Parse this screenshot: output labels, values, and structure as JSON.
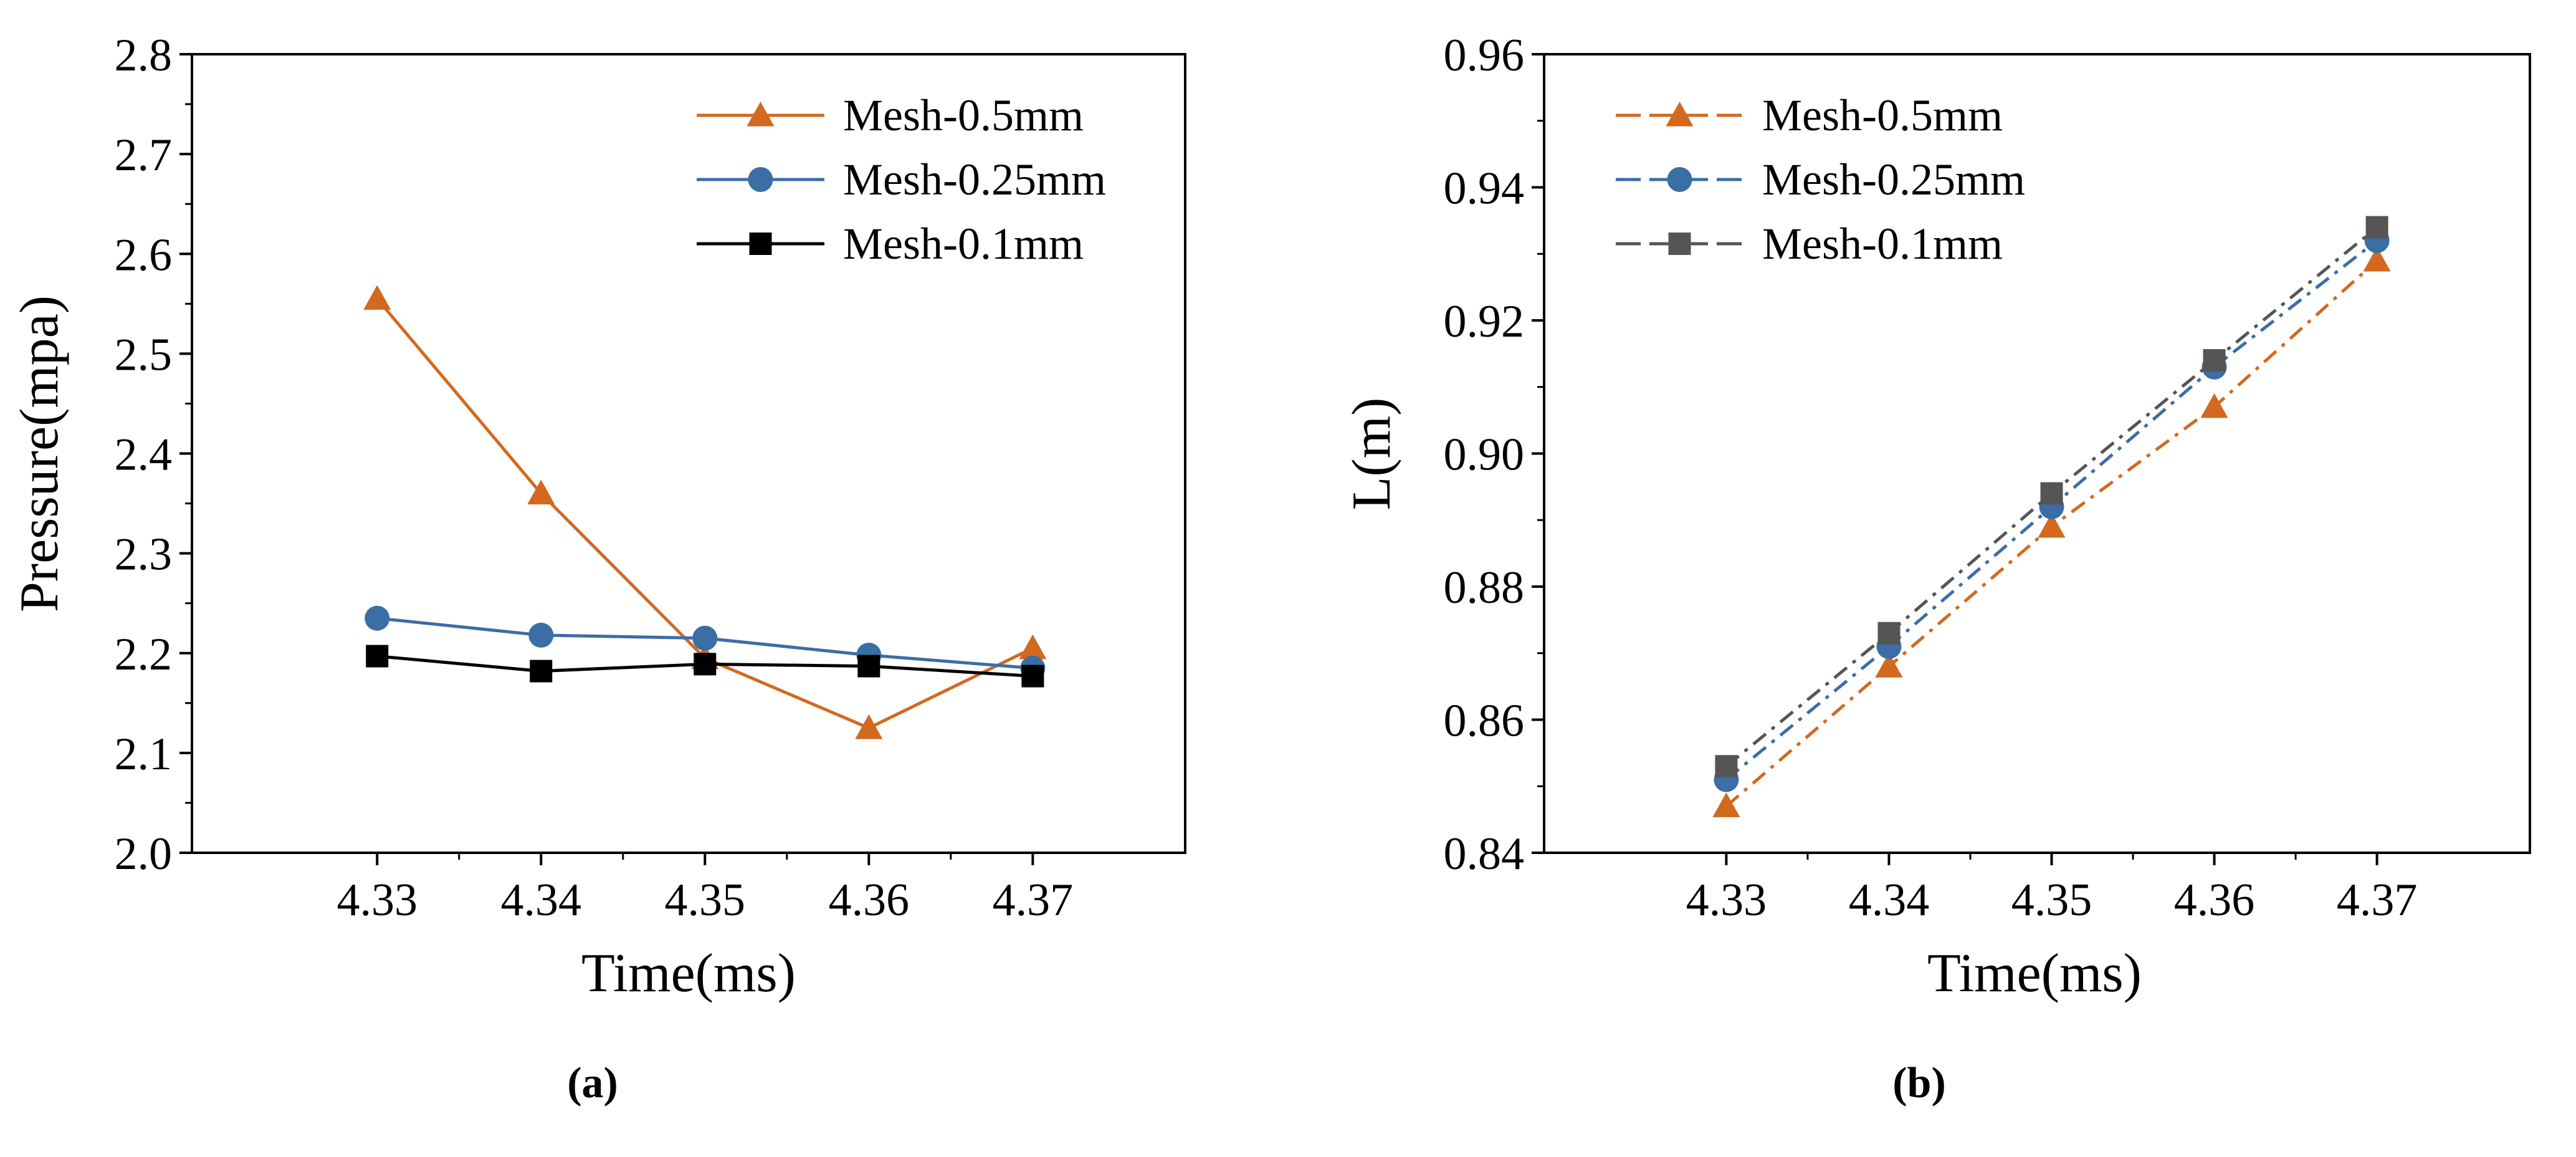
{
  "chart_data": [
    {
      "type": "line",
      "panel_label": "(a)",
      "xlabel": "Time(ms)",
      "ylabel": "Pressure(mpa)",
      "x": [
        4.33,
        4.34,
        4.35,
        4.36,
        4.37
      ],
      "xlim": [
        4.3187,
        4.3793
      ],
      "ylim": [
        2.0,
        2.8
      ],
      "xticks": [
        "4.33",
        "4.34",
        "4.35",
        "4.36",
        "4.37"
      ],
      "yticks": [
        "2.0",
        "2.1",
        "2.2",
        "2.3",
        "2.4",
        "2.5",
        "2.6",
        "2.7",
        "2.8"
      ],
      "grid": false,
      "legend_position": "top-right",
      "series": [
        {
          "name": "Mesh-0.5mm",
          "values": [
            2.555,
            2.36,
            2.195,
            2.125,
            2.205
          ],
          "color": "#D2691E",
          "marker": "triangle",
          "line_style": "solid"
        },
        {
          "name": "Mesh-0.25mm",
          "values": [
            2.235,
            2.218,
            2.215,
            2.198,
            2.185
          ],
          "color": "#3A6EA5",
          "marker": "circle",
          "line_style": "solid"
        },
        {
          "name": "Mesh-0.1mm",
          "values": [
            2.197,
            2.182,
            2.189,
            2.187,
            2.177
          ],
          "color": "#000000",
          "marker": "square",
          "line_style": "solid"
        }
      ]
    },
    {
      "type": "line",
      "panel_label": "(b)",
      "xlabel": "Time(ms)",
      "ylabel": "L(m)",
      "x": [
        4.33,
        4.34,
        4.35,
        4.36,
        4.37
      ],
      "xlim": [
        4.3188,
        4.3794
      ],
      "ylim": [
        0.84,
        0.96
      ],
      "xticks": [
        "4.33",
        "4.34",
        "4.35",
        "4.36",
        "4.37"
      ],
      "yticks": [
        "0.84",
        "0.86",
        "0.88",
        "0.90",
        "0.92",
        "0.94",
        "0.96"
      ],
      "grid": false,
      "legend_position": "top-left",
      "series": [
        {
          "name": "Mesh-0.5mm",
          "values": [
            0.847,
            0.868,
            0.889,
            0.907,
            0.929
          ],
          "color": "#D2691E",
          "marker": "triangle",
          "line_style": "dash-dot"
        },
        {
          "name": "Mesh-0.25mm",
          "values": [
            0.851,
            0.871,
            0.892,
            0.913,
            0.932
          ],
          "color": "#3A6EA5",
          "marker": "circle",
          "line_style": "dash-dot"
        },
        {
          "name": "Mesh-0.1mm",
          "values": [
            0.853,
            0.873,
            0.894,
            0.914,
            0.934
          ],
          "color": "#555555",
          "marker": "square",
          "line_style": "dash-dot"
        }
      ]
    }
  ]
}
